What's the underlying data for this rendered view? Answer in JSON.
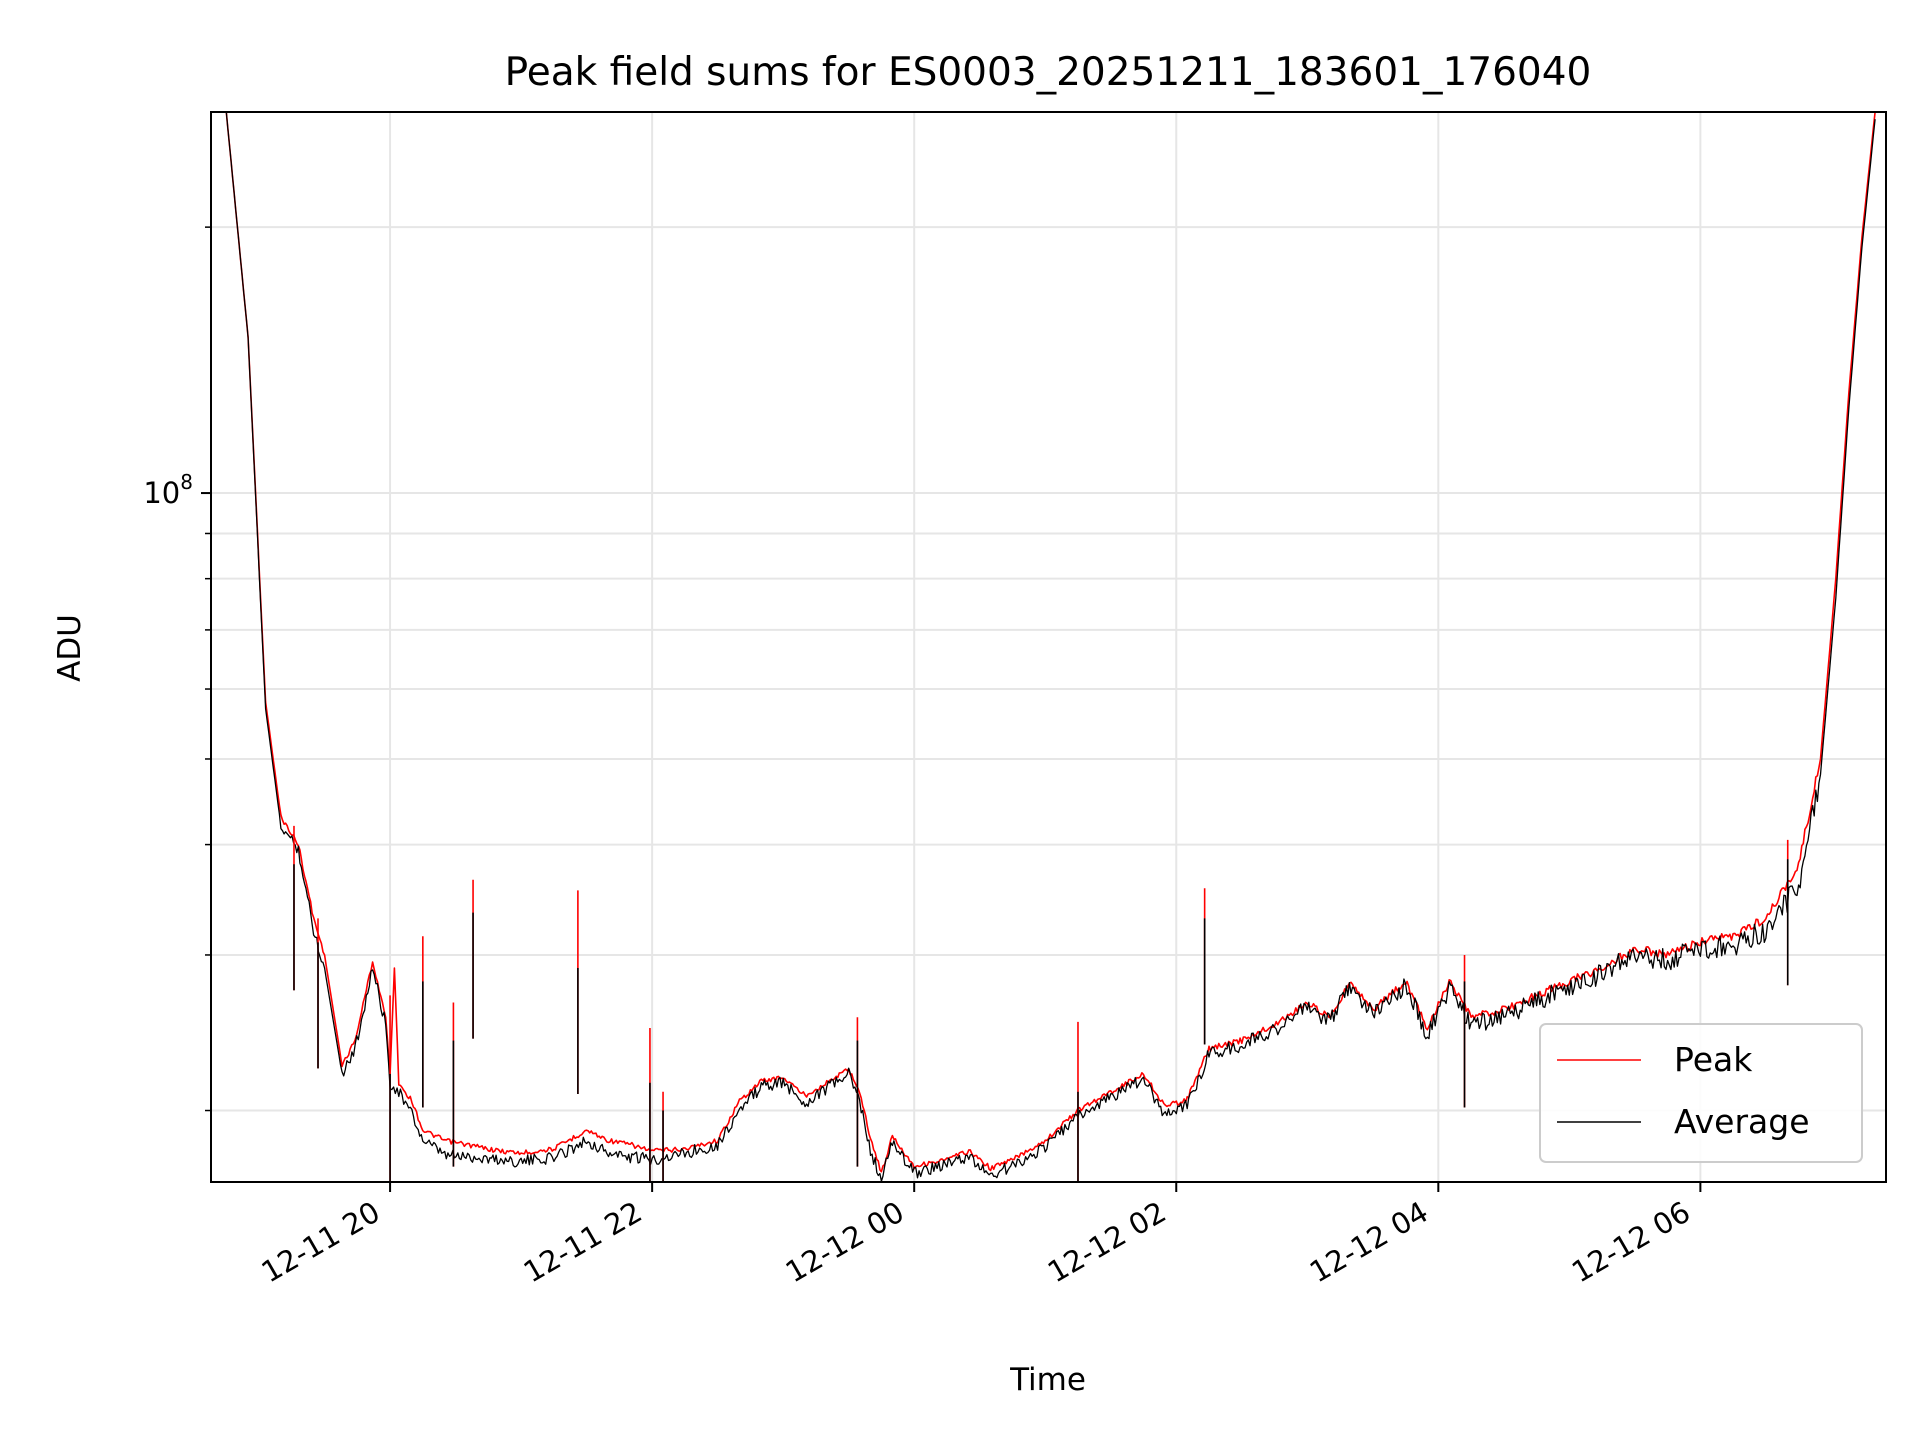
{
  "chart_data": {
    "type": "line",
    "title": "Peak field sums for ES0003_20251211_183601_176040",
    "xlabel": "Time",
    "ylabel": "ADU",
    "yscale": "log",
    "xlim": [
      "2025-12-11 18:38",
      "2025-12-12 07:25"
    ],
    "ylim": [
      16600000,
      270000000
    ],
    "x_ticks": [
      {
        "value": "2025-12-11 20:00",
        "label": "12-11 20"
      },
      {
        "value": "2025-12-11 22:00",
        "label": "12-11 22"
      },
      {
        "value": "2025-12-12 00:00",
        "label": "12-12 00"
      },
      {
        "value": "2025-12-12 02:00",
        "label": "12-12 02"
      },
      {
        "value": "2025-12-12 04:00",
        "label": "12-12 04"
      },
      {
        "value": "2025-12-12 06:00",
        "label": "12-12 06"
      }
    ],
    "y_major_tick": {
      "value": 100000000,
      "base": "10",
      "exponent": "8"
    },
    "y_minor_ticks": [
      20000000,
      30000000,
      40000000,
      50000000,
      60000000,
      70000000,
      80000000,
      90000000,
      200000000
    ],
    "grid": true,
    "legend_position": "lower-right",
    "series": [
      {
        "name": "Peak",
        "color": "#ff0000",
        "points": [
          [
            "2025-12-11 18:45",
            270000000
          ],
          [
            "2025-12-11 18:55",
            150000000
          ],
          [
            "2025-12-11 19:03",
            58000000
          ],
          [
            "2025-12-11 19:10",
            43000000
          ],
          [
            "2025-12-11 19:18",
            40000000
          ],
          [
            "2025-12-11 19:25",
            33000000
          ],
          [
            "2025-12-11 19:30",
            30000000
          ],
          [
            "2025-12-11 19:38",
            22500000
          ],
          [
            "2025-12-11 19:44",
            24000000
          ],
          [
            "2025-12-11 19:52",
            29500000
          ],
          [
            "2025-12-11 19:58",
            25500000
          ],
          [
            "2025-12-11 20:00",
            22000000
          ],
          [
            "2025-12-11 20:02",
            29000000
          ],
          [
            "2025-12-11 20:04",
            21500000
          ],
          [
            "2025-12-11 20:10",
            20500000
          ],
          [
            "2025-12-11 20:15",
            19000000
          ],
          [
            "2025-12-11 20:25",
            18500000
          ],
          [
            "2025-12-11 20:40",
            18200000
          ],
          [
            "2025-12-11 20:50",
            18000000
          ],
          [
            "2025-12-11 21:00",
            17900000
          ],
          [
            "2025-12-11 21:15",
            18100000
          ],
          [
            "2025-12-11 21:30",
            19000000
          ],
          [
            "2025-12-11 21:40",
            18500000
          ],
          [
            "2025-12-11 21:50",
            18300000
          ],
          [
            "2025-12-11 22:00",
            18000000
          ],
          [
            "2025-12-11 22:15",
            18100000
          ],
          [
            "2025-12-11 22:30",
            18500000
          ],
          [
            "2025-12-11 22:40",
            20500000
          ],
          [
            "2025-12-11 22:50",
            21600000
          ],
          [
            "2025-12-11 23:00",
            21800000
          ],
          [
            "2025-12-11 23:10",
            20800000
          ],
          [
            "2025-12-11 23:20",
            21500000
          ],
          [
            "2025-12-11 23:30",
            22300000
          ],
          [
            "2025-12-11 23:35",
            21000000
          ],
          [
            "2025-12-11 23:40",
            18600000
          ],
          [
            "2025-12-11 23:45",
            17000000
          ],
          [
            "2025-12-11 23:50",
            18700000
          ],
          [
            "2025-12-12 00:00",
            17300000
          ],
          [
            "2025-12-12 00:15",
            17600000
          ],
          [
            "2025-12-12 00:25",
            18000000
          ],
          [
            "2025-12-12 00:35",
            17200000
          ],
          [
            "2025-12-12 00:45",
            17600000
          ],
          [
            "2025-12-12 01:00",
            18500000
          ],
          [
            "2025-12-12 01:15",
            20000000
          ],
          [
            "2025-12-12 01:30",
            21000000
          ],
          [
            "2025-12-12 01:45",
            22000000
          ],
          [
            "2025-12-12 01:55",
            20200000
          ],
          [
            "2025-12-12 02:05",
            20600000
          ],
          [
            "2025-12-12 02:15",
            23500000
          ],
          [
            "2025-12-12 02:30",
            24000000
          ],
          [
            "2025-12-12 02:45",
            25000000
          ],
          [
            "2025-12-12 03:00",
            26500000
          ],
          [
            "2025-12-12 03:10",
            25500000
          ],
          [
            "2025-12-12 03:20",
            28000000
          ],
          [
            "2025-12-12 03:30",
            26000000
          ],
          [
            "2025-12-12 03:45",
            28000000
          ],
          [
            "2025-12-12 03:55",
            24800000
          ],
          [
            "2025-12-12 04:05",
            28000000
          ],
          [
            "2025-12-12 04:15",
            25500000
          ],
          [
            "2025-12-12 04:30",
            26000000
          ],
          [
            "2025-12-12 04:45",
            27000000
          ],
          [
            "2025-12-12 05:00",
            28000000
          ],
          [
            "2025-12-12 05:15",
            29000000
          ],
          [
            "2025-12-12 05:30",
            30500000
          ],
          [
            "2025-12-12 05:45",
            30000000
          ],
          [
            "2025-12-12 06:00",
            31000000
          ],
          [
            "2025-12-12 06:15",
            31500000
          ],
          [
            "2025-12-12 06:30",
            33000000
          ],
          [
            "2025-12-12 06:45",
            38000000
          ],
          [
            "2025-12-12 06:55",
            50000000
          ],
          [
            "2025-12-12 07:02",
            80000000
          ],
          [
            "2025-12-12 07:08",
            130000000
          ],
          [
            "2025-12-12 07:14",
            195000000
          ],
          [
            "2025-12-12 07:20",
            270000000
          ]
        ]
      },
      {
        "name": "Average",
        "color": "#000000",
        "points": [
          [
            "2025-12-11 18:45",
            270000000
          ],
          [
            "2025-12-11 18:55",
            150000000
          ],
          [
            "2025-12-11 19:03",
            57000000
          ],
          [
            "2025-12-11 19:10",
            42000000
          ],
          [
            "2025-12-11 19:18",
            39500000
          ],
          [
            "2025-12-11 19:25",
            32000000
          ],
          [
            "2025-12-11 19:30",
            29000000
          ],
          [
            "2025-12-11 19:38",
            22000000
          ],
          [
            "2025-12-11 19:44",
            23500000
          ],
          [
            "2025-12-11 19:52",
            29000000
          ],
          [
            "2025-12-11 19:58",
            25000000
          ],
          [
            "2025-12-11 20:00",
            21500000
          ],
          [
            "2025-12-11 20:04",
            21000000
          ],
          [
            "2025-12-11 20:10",
            19800000
          ],
          [
            "2025-12-11 20:15",
            18500000
          ],
          [
            "2025-12-11 20:25",
            17800000
          ],
          [
            "2025-12-11 20:40",
            17700000
          ],
          [
            "2025-12-11 20:50",
            17600000
          ],
          [
            "2025-12-11 21:00",
            17500000
          ],
          [
            "2025-12-11 21:15",
            17700000
          ],
          [
            "2025-12-11 21:30",
            18500000
          ],
          [
            "2025-12-11 21:40",
            17900000
          ],
          [
            "2025-12-11 21:50",
            17700000
          ],
          [
            "2025-12-11 22:00",
            17600000
          ],
          [
            "2025-12-11 22:15",
            17900000
          ],
          [
            "2025-12-11 22:30",
            18300000
          ],
          [
            "2025-12-11 22:40",
            20000000
          ],
          [
            "2025-12-11 22:50",
            21300000
          ],
          [
            "2025-12-11 23:00",
            21500000
          ],
          [
            "2025-12-11 23:10",
            20400000
          ],
          [
            "2025-12-11 23:20",
            21200000
          ],
          [
            "2025-12-11 23:30",
            22000000
          ],
          [
            "2025-12-11 23:35",
            20500000
          ],
          [
            "2025-12-11 23:40",
            18000000
          ],
          [
            "2025-12-11 23:45",
            16700000
          ],
          [
            "2025-12-11 23:50",
            18400000
          ],
          [
            "2025-12-12 00:00",
            17000000
          ],
          [
            "2025-12-12 00:15",
            17400000
          ],
          [
            "2025-12-12 00:25",
            17700000
          ],
          [
            "2025-12-12 00:35",
            16900000
          ],
          [
            "2025-12-12 00:45",
            17300000
          ],
          [
            "2025-12-12 01:00",
            18200000
          ],
          [
            "2025-12-12 01:15",
            19700000
          ],
          [
            "2025-12-12 01:30",
            20700000
          ],
          [
            "2025-12-12 01:45",
            21700000
          ],
          [
            "2025-12-12 01:55",
            19800000
          ],
          [
            "2025-12-12 02:05",
            20300000
          ],
          [
            "2025-12-12 02:15",
            23200000
          ],
          [
            "2025-12-12 02:30",
            23700000
          ],
          [
            "2025-12-12 02:45",
            24700000
          ],
          [
            "2025-12-12 03:00",
            26200000
          ],
          [
            "2025-12-12 03:10",
            25200000
          ],
          [
            "2025-12-12 03:20",
            27700000
          ],
          [
            "2025-12-12 03:30",
            25700000
          ],
          [
            "2025-12-12 03:45",
            27700000
          ],
          [
            "2025-12-12 03:55",
            24400000
          ],
          [
            "2025-12-12 04:05",
            27500000
          ],
          [
            "2025-12-12 04:15",
            25000000
          ],
          [
            "2025-12-12 04:30",
            25600000
          ],
          [
            "2025-12-12 04:45",
            26600000
          ],
          [
            "2025-12-12 05:00",
            27600000
          ],
          [
            "2025-12-12 05:15",
            28600000
          ],
          [
            "2025-12-12 05:30",
            30000000
          ],
          [
            "2025-12-12 05:45",
            29600000
          ],
          [
            "2025-12-12 06:00",
            30500000
          ],
          [
            "2025-12-12 06:15",
            30800000
          ],
          [
            "2025-12-12 06:30",
            32000000
          ],
          [
            "2025-12-12 06:45",
            36000000
          ],
          [
            "2025-12-12 06:55",
            48000000
          ],
          [
            "2025-12-12 07:02",
            76000000
          ],
          [
            "2025-12-12 07:08",
            125000000
          ],
          [
            "2025-12-12 07:14",
            190000000
          ],
          [
            "2025-12-12 07:20",
            265000000
          ]
        ]
      }
    ],
    "spikes": [
      {
        "x": "2025-12-11 19:16",
        "peak": 42000000,
        "average": 38000000
      },
      {
        "x": "2025-12-11 19:27",
        "peak": 33000000,
        "average": 31000000
      },
      {
        "x": "2025-12-11 20:00",
        "peak": 27000000,
        "average": 22000000
      },
      {
        "x": "2025-12-11 20:15",
        "peak": 31500000,
        "average": 28000000
      },
      {
        "x": "2025-12-11 20:29",
        "peak": 26500000,
        "average": 24000000
      },
      {
        "x": "2025-12-11 20:38",
        "peak": 36500000,
        "average": 33500000
      },
      {
        "x": "2025-12-11 21:26",
        "peak": 35500000,
        "average": 29000000
      },
      {
        "x": "2025-12-11 21:59",
        "peak": 24800000,
        "average": 21500000
      },
      {
        "x": "2025-12-11 22:05",
        "peak": 21000000,
        "average": 20000000
      },
      {
        "x": "2025-12-11 23:34",
        "peak": 25500000,
        "average": 24000000
      },
      {
        "x": "2025-12-12 01:15",
        "peak": 25200000,
        "average": 21000000
      },
      {
        "x": "2025-12-12 02:13",
        "peak": 35700000,
        "average": 33000000
      },
      {
        "x": "2025-12-12 04:12",
        "peak": 30000000,
        "average": 28000000
      },
      {
        "x": "2025-12-12 06:40",
        "peak": 40500000,
        "average": 38500000
      }
    ]
  }
}
